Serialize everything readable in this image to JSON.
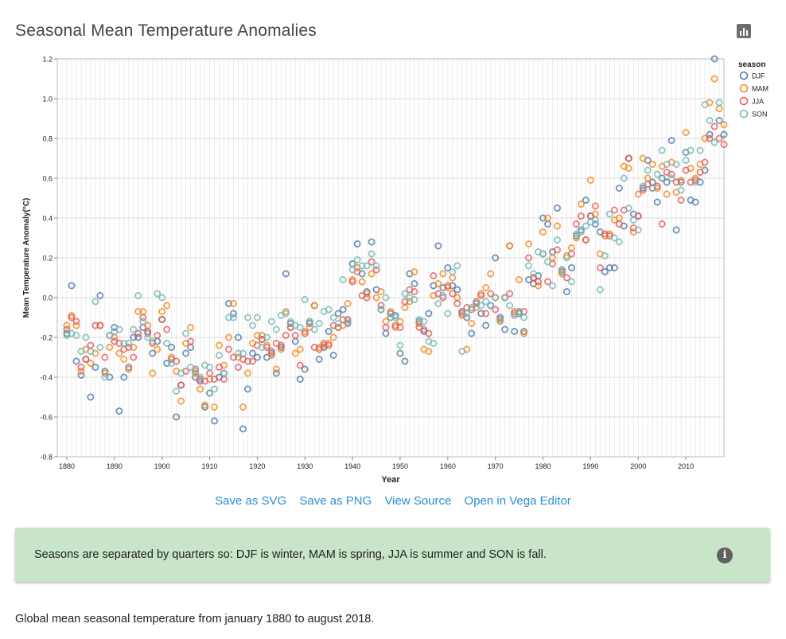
{
  "header": {
    "title": "Seasonal Mean Temperature Anomalies"
  },
  "toolbar": {
    "chart_icon": "bar-chart-icon"
  },
  "links": [
    {
      "label": "Save as SVG"
    },
    {
      "label": "Save as PNG"
    },
    {
      "label": "View Source"
    },
    {
      "label": "Open in Vega Editor"
    }
  ],
  "note": {
    "text": "Seasons are separated by quarters so: DJF is winter, MAM is spring, JJA is summer and SON is fall.",
    "icon": "info-icon"
  },
  "description": "Global mean seasonal temperature from january 1880 to august 2018.",
  "chart_data": {
    "type": "scatter",
    "xlabel": "Year",
    "ylabel": "Mean Temperature Anomaly(°C)",
    "xlim": [
      1878,
      2018
    ],
    "ylim": [
      -0.8,
      1.2
    ],
    "x_ticks": [
      1880,
      1890,
      1900,
      1910,
      1920,
      1930,
      1940,
      1950,
      1960,
      1970,
      1980,
      1990,
      2000,
      2010
    ],
    "y_ticks": [
      "-0.8",
      "-0.6",
      "-0.4",
      "-0.2",
      "0.0",
      "0.2",
      "0.4",
      "0.6",
      "0.8",
      "1.0",
      "1.2"
    ],
    "grid": true,
    "legend": {
      "title": "season",
      "placement": "top-right"
    },
    "x": [
      1880,
      1881,
      1882,
      1883,
      1884,
      1885,
      1886,
      1887,
      1888,
      1889,
      1890,
      1891,
      1892,
      1893,
      1894,
      1895,
      1896,
      1897,
      1898,
      1899,
      1900,
      1901,
      1902,
      1903,
      1904,
      1905,
      1906,
      1907,
      1908,
      1909,
      1910,
      1911,
      1912,
      1913,
      1914,
      1915,
      1916,
      1917,
      1918,
      1919,
      1920,
      1921,
      1922,
      1923,
      1924,
      1925,
      1926,
      1927,
      1928,
      1929,
      1930,
      1931,
      1932,
      1933,
      1934,
      1935,
      1936,
      1937,
      1938,
      1939,
      1940,
      1941,
      1942,
      1943,
      1944,
      1945,
      1946,
      1947,
      1948,
      1949,
      1950,
      1951,
      1952,
      1953,
      1954,
      1955,
      1956,
      1957,
      1958,
      1959,
      1960,
      1961,
      1962,
      1963,
      1964,
      1965,
      1966,
      1967,
      1968,
      1969,
      1970,
      1971,
      1972,
      1973,
      1974,
      1975,
      1976,
      1977,
      1978,
      1979,
      1980,
      1981,
      1982,
      1983,
      1984,
      1985,
      1986,
      1987,
      1988,
      1989,
      1990,
      1991,
      1992,
      1993,
      1994,
      1995,
      1996,
      1997,
      1998,
      1999,
      2000,
      2001,
      2002,
      2003,
      2004,
      2005,
      2006,
      2007,
      2008,
      2009,
      2010,
      2011,
      2012,
      2013,
      2014,
      2015,
      2016,
      2017,
      2018
    ],
    "series": [
      {
        "name": "DJF",
        "color": "#4c78a8",
        "values": [
          -0.18,
          0.06,
          -0.32,
          -0.39,
          -0.31,
          -0.5,
          -0.35,
          0.01,
          -0.37,
          -0.4,
          -0.15,
          -0.57,
          -0.4,
          -0.35,
          -0.2,
          -0.2,
          -0.15,
          -0.17,
          -0.28,
          -0.22,
          -0.11,
          -0.33,
          -0.25,
          -0.6,
          -0.44,
          -0.28,
          -0.25,
          -0.4,
          -0.42,
          -0.55,
          -0.48,
          -0.62,
          -0.4,
          -0.38,
          -0.03,
          -0.08,
          -0.2,
          -0.66,
          -0.46,
          -0.28,
          -0.3,
          -0.21,
          -0.3,
          -0.28,
          -0.38,
          -0.25,
          0.12,
          -0.13,
          -0.22,
          -0.41,
          -0.36,
          -0.13,
          -0.04,
          -0.31,
          -0.25,
          -0.17,
          -0.29,
          -0.08,
          -0.06,
          -0.13,
          0.17,
          0.27,
          0.12,
          0.03,
          0.28,
          0.04,
          -0.06,
          -0.18,
          -0.08,
          -0.09,
          -0.28,
          -0.32,
          0.12,
          0.07,
          -0.12,
          -0.17,
          -0.08,
          0.06,
          0.26,
          0.05,
          0.15,
          0.06,
          0.04,
          -0.07,
          -0.1,
          -0.18,
          -0.03,
          -0.08,
          -0.14,
          -0.04,
          0.2,
          -0.1,
          -0.16,
          0.26,
          -0.17,
          -0.08,
          -0.17,
          0.09,
          0.07,
          0.11,
          0.4,
          0.37,
          0.23,
          0.45,
          0.13,
          0.03,
          0.15,
          0.31,
          0.34,
          0.49,
          0.41,
          0.37,
          0.33,
          0.13,
          0.15,
          0.15,
          0.55,
          0.36,
          0.7,
          0.42,
          0.41,
          0.55,
          0.69,
          0.58,
          0.48,
          0.6,
          0.58,
          0.79,
          0.34,
          0.58,
          0.73,
          0.49,
          0.48,
          0.58,
          0.64,
          0.82,
          1.2,
          0.89,
          0.82
        ]
      },
      {
        "name": "MAM",
        "color": "#f58518",
        "values": [
          -0.14,
          -0.09,
          -0.14,
          -0.37,
          -0.26,
          -0.33,
          -0.28,
          -0.14,
          -0.38,
          -0.25,
          -0.2,
          -0.28,
          -0.31,
          -0.36,
          -0.25,
          -0.07,
          -0.07,
          -0.14,
          -0.38,
          -0.26,
          -0.07,
          -0.04,
          -0.3,
          -0.37,
          -0.52,
          -0.23,
          -0.15,
          -0.38,
          -0.46,
          -0.54,
          -0.41,
          -0.55,
          -0.24,
          -0.34,
          -0.2,
          -0.03,
          -0.3,
          -0.55,
          -0.38,
          -0.23,
          -0.19,
          -0.19,
          -0.24,
          -0.29,
          -0.36,
          -0.26,
          -0.07,
          -0.15,
          -0.28,
          -0.26,
          -0.17,
          -0.15,
          -0.04,
          -0.25,
          -0.24,
          -0.23,
          -0.2,
          -0.15,
          -0.14,
          -0.03,
          0.09,
          0.15,
          0.08,
          0.02,
          0.12,
          0.0,
          0.03,
          -0.12,
          -0.07,
          -0.15,
          -0.12,
          -0.05,
          -0.02,
          0.13,
          -0.13,
          -0.26,
          -0.27,
          0.01,
          0.07,
          0.12,
          0.05,
          0.1,
          0.0,
          -0.09,
          -0.26,
          -0.13,
          -0.05,
          0.02,
          0.05,
          0.12,
          0.0,
          -0.12,
          0.0,
          0.26,
          -0.07,
          0.09,
          -0.18,
          0.27,
          0.1,
          0.06,
          0.33,
          0.4,
          0.2,
          0.36,
          0.12,
          0.21,
          0.25,
          0.3,
          0.47,
          0.29,
          0.59,
          0.42,
          0.22,
          0.31,
          0.32,
          0.39,
          0.4,
          0.66,
          0.65,
          0.33,
          0.52,
          0.7,
          0.6,
          0.67,
          0.55,
          0.66,
          0.52,
          0.68,
          0.53,
          0.59,
          0.83,
          0.65,
          0.6,
          0.67,
          0.8,
          0.98,
          1.1,
          0.95,
          0.87
        ]
      },
      {
        "name": "JJA",
        "color": "#e45756",
        "values": [
          -0.16,
          -0.1,
          -0.12,
          -0.35,
          -0.31,
          -0.24,
          -0.14,
          -0.14,
          -0.3,
          -0.19,
          -0.22,
          -0.23,
          -0.26,
          -0.25,
          -0.3,
          -0.18,
          -0.1,
          -0.18,
          -0.23,
          -0.19,
          -0.11,
          -0.16,
          -0.31,
          -0.32,
          -0.44,
          -0.37,
          -0.22,
          -0.36,
          -0.41,
          -0.42,
          -0.38,
          -0.41,
          -0.35,
          -0.41,
          -0.26,
          -0.3,
          -0.35,
          -0.31,
          -0.32,
          -0.32,
          -0.24,
          -0.21,
          -0.25,
          -0.27,
          -0.23,
          -0.24,
          -0.19,
          -0.15,
          -0.19,
          -0.34,
          -0.18,
          -0.12,
          -0.25,
          -0.26,
          -0.23,
          -0.24,
          -0.14,
          -0.15,
          -0.11,
          -0.11,
          0.08,
          0.13,
          0.01,
          0.0,
          0.18,
          0.14,
          -0.04,
          -0.15,
          -0.1,
          -0.14,
          -0.15,
          -0.02,
          0.04,
          0.03,
          -0.15,
          -0.16,
          -0.18,
          0.11,
          0.02,
          0.0,
          0.06,
          0.02,
          -0.03,
          -0.08,
          -0.05,
          -0.06,
          -0.02,
          0.01,
          -0.08,
          0.02,
          -0.06,
          -0.11,
          0.0,
          0.02,
          -0.08,
          -0.07,
          -0.07,
          0.2,
          0.1,
          0.08,
          0.22,
          0.08,
          0.17,
          0.24,
          0.14,
          0.1,
          0.22,
          0.37,
          0.41,
          0.29,
          0.41,
          0.46,
          0.15,
          0.32,
          0.31,
          0.44,
          0.37,
          0.44,
          0.7,
          0.35,
          0.41,
          0.54,
          0.57,
          0.55,
          0.56,
          0.37,
          0.63,
          0.62,
          0.58,
          0.49,
          0.64,
          0.58,
          0.59,
          0.63,
          0.68,
          0.8,
          0.86,
          0.8,
          0.77
        ]
      },
      {
        "name": "SON",
        "color": "#72b7b2",
        "values": [
          -0.19,
          -0.18,
          -0.19,
          -0.27,
          -0.2,
          -0.27,
          -0.02,
          -0.25,
          -0.4,
          -0.19,
          -0.17,
          -0.16,
          -0.23,
          -0.23,
          -0.16,
          0.01,
          -0.12,
          -0.2,
          -0.22,
          0.02,
          0.0,
          -0.23,
          -0.33,
          -0.47,
          -0.38,
          -0.18,
          -0.35,
          -0.37,
          -0.4,
          -0.34,
          -0.35,
          -0.46,
          -0.29,
          -0.38,
          -0.1,
          -0.1,
          -0.28,
          -0.28,
          -0.1,
          -0.14,
          -0.1,
          -0.25,
          -0.2,
          -0.12,
          -0.16,
          -0.09,
          -0.08,
          -0.12,
          -0.14,
          -0.15,
          -0.01,
          -0.12,
          -0.16,
          -0.13,
          -0.07,
          -0.06,
          -0.1,
          -0.13,
          0.09,
          -0.12,
          0.14,
          0.19,
          0.16,
          0.16,
          0.22,
          0.16,
          -0.06,
          0.0,
          -0.1,
          -0.1,
          -0.24,
          0.02,
          0.0,
          -0.01,
          -0.11,
          -0.12,
          -0.22,
          -0.23,
          -0.03,
          0.01,
          -0.08,
          0.13,
          0.16,
          -0.27,
          -0.08,
          -0.05,
          -0.03,
          -0.04,
          -0.02,
          -0.04,
          0.0,
          -0.11,
          0.0,
          -0.04,
          -0.09,
          -0.07,
          -0.1,
          0.16,
          0.12,
          0.23,
          0.22,
          0.18,
          0.06,
          0.29,
          0.14,
          0.2,
          0.08,
          0.32,
          0.33,
          0.36,
          0.38,
          0.39,
          0.04,
          0.21,
          0.42,
          0.3,
          0.28,
          0.6,
          0.45,
          0.39,
          0.34,
          0.56,
          0.64,
          0.55,
          0.62,
          0.74,
          0.67,
          0.6,
          0.67,
          0.54,
          0.69,
          0.74,
          0.58,
          0.74,
          0.97,
          0.89,
          0.78,
          0.98
        ]
      }
    ]
  }
}
